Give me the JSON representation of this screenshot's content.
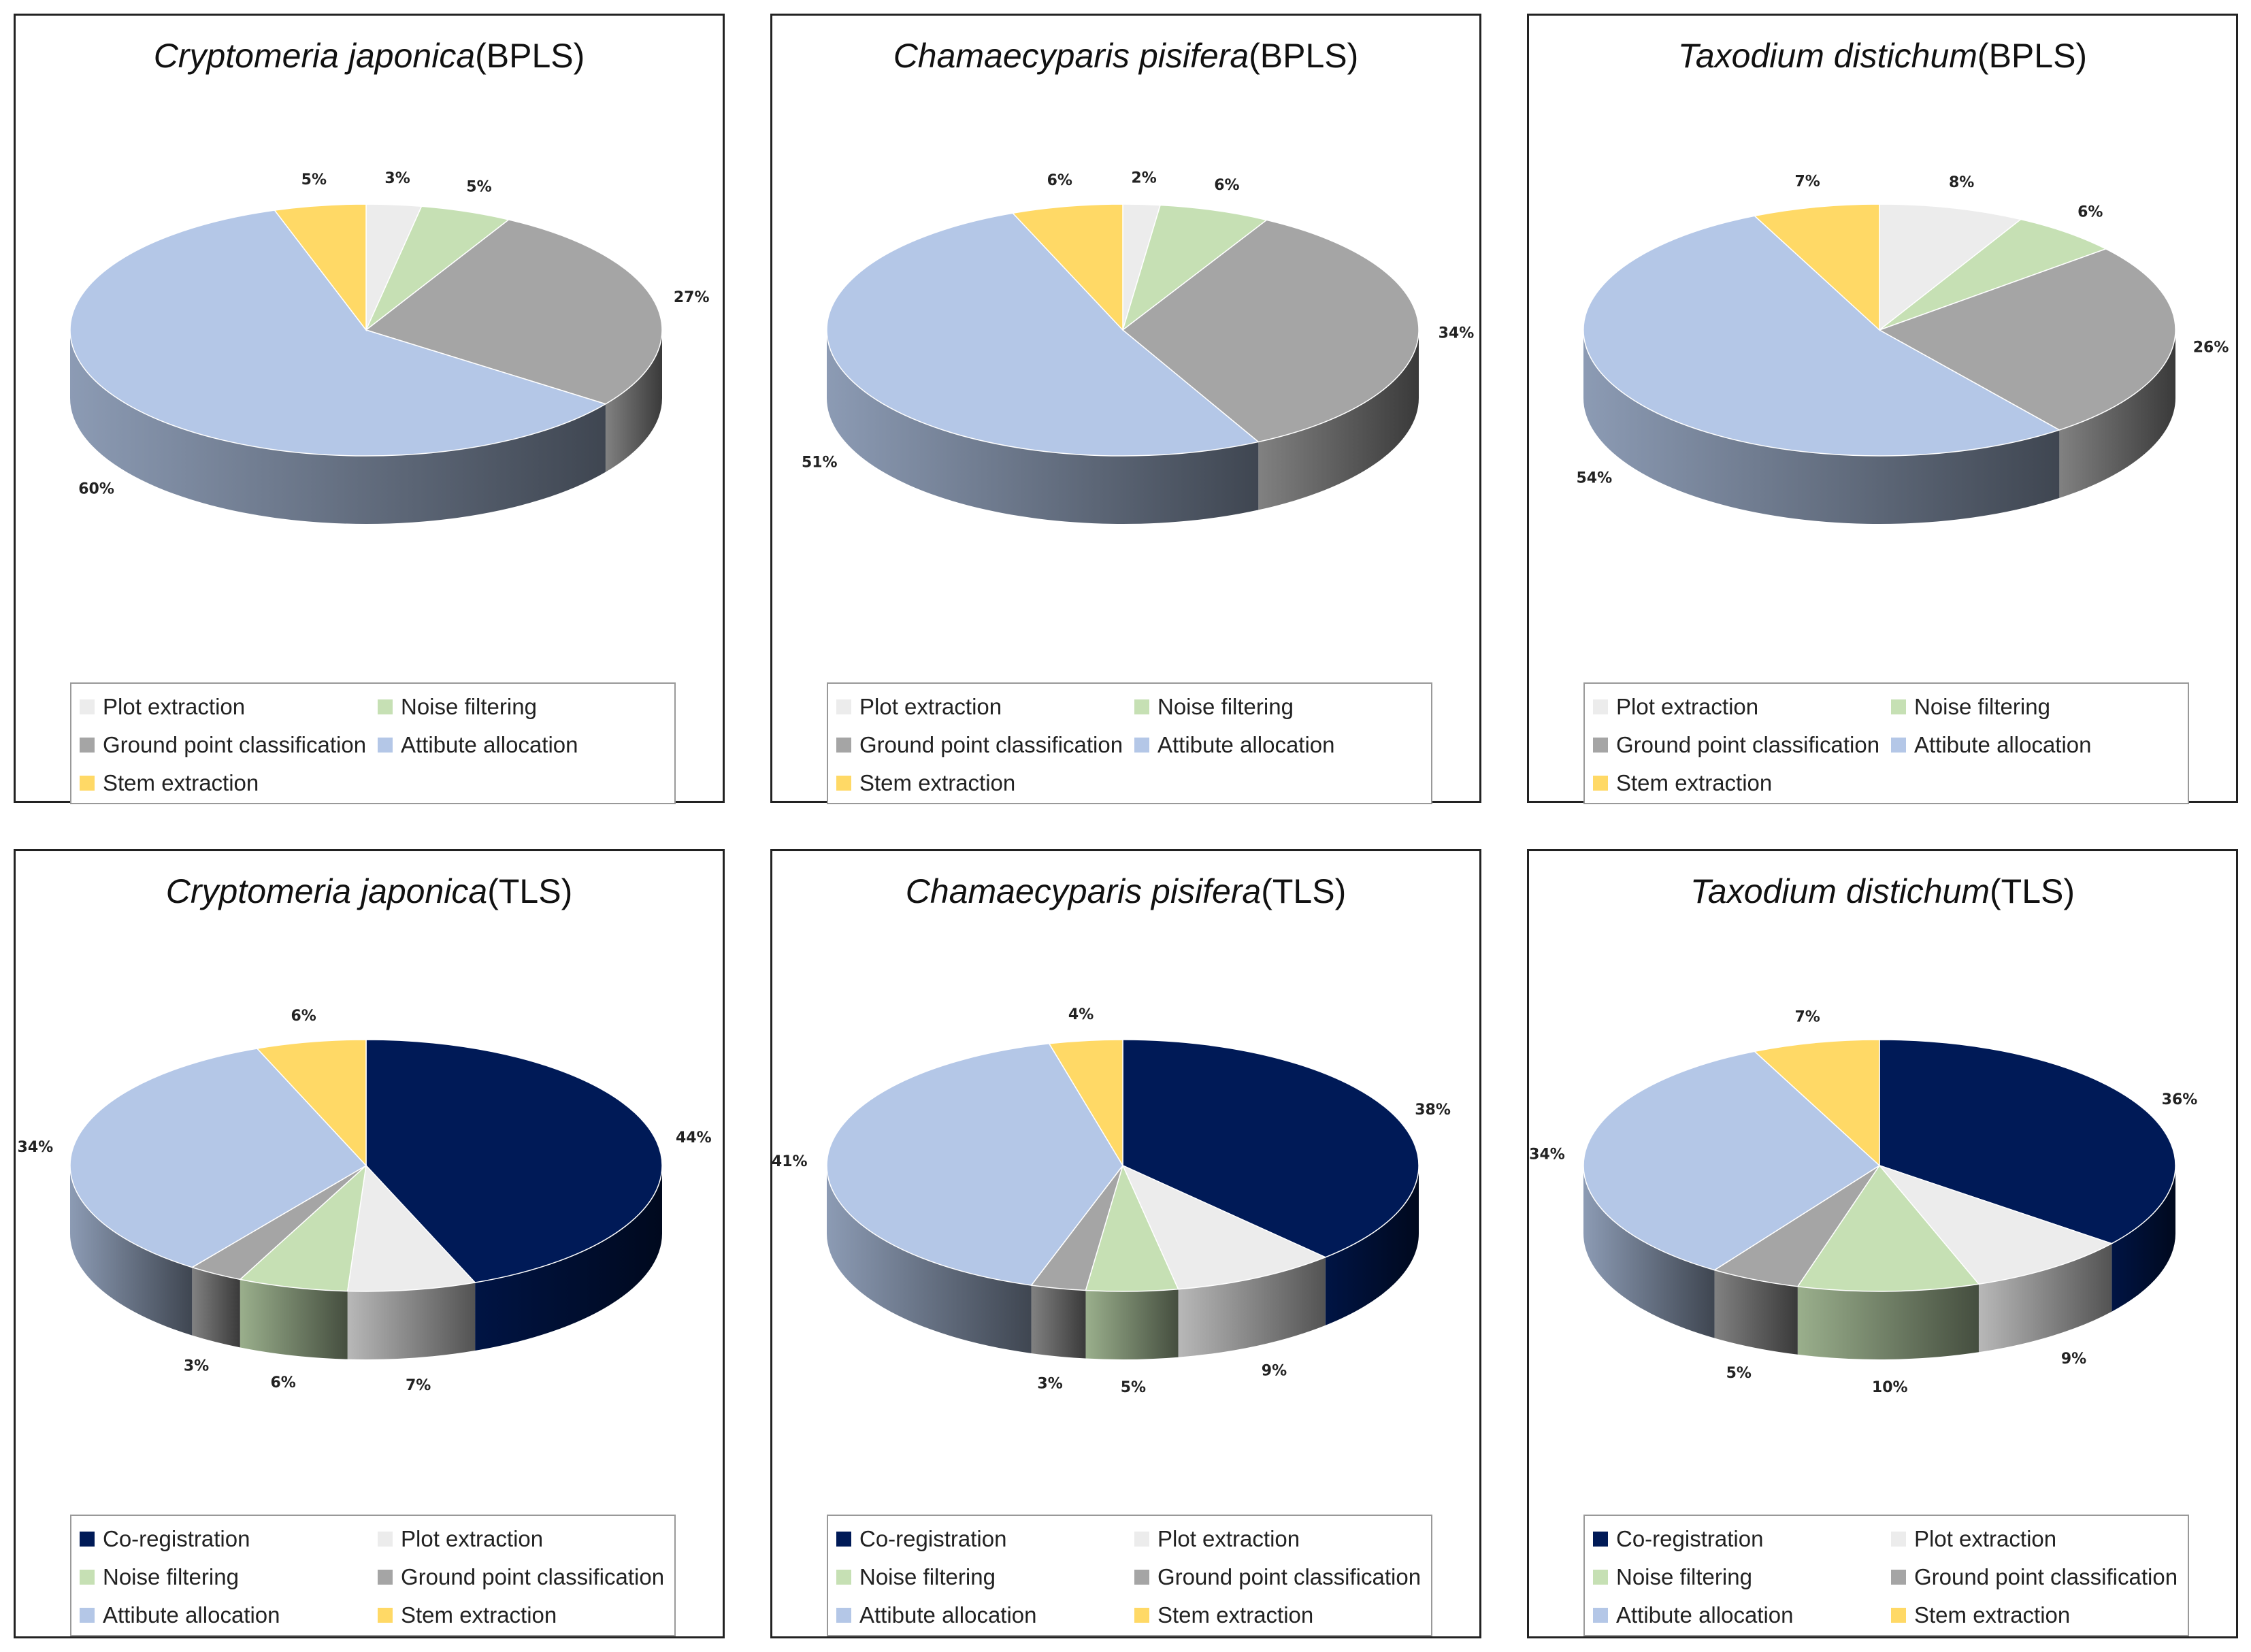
{
  "colors": {
    "Co-registration": "#001a57",
    "Plot extraction": "#ececec",
    "Noise filtering": "#c6e0b4",
    "Ground point classification": "#a5a5a5",
    "Attibute allocation": "#b4c7e7",
    "Stem extraction": "#ffd966"
  },
  "chart_data": [
    {
      "type": "pie",
      "title_species": "Cryptomeria japonica",
      "title_method": "(BPLS)",
      "categories": [
        "Plot extraction",
        "Noise filtering",
        "Ground point classification",
        "Attibute allocation",
        "Stem extraction"
      ],
      "values": [
        3,
        5,
        27,
        60,
        5
      ],
      "labels": [
        "3%",
        "5%",
        "27%",
        "60%",
        "5%"
      ],
      "legend": [
        "Plot extraction",
        "Noise filtering",
        "Ground point classification",
        "Attibute allocation",
        "Stem extraction"
      ]
    },
    {
      "type": "pie",
      "title_species": "Chamaecyparis pisifera",
      "title_method": "(BPLS)",
      "categories": [
        "Plot extraction",
        "Noise filtering",
        "Ground point classification",
        "Attibute allocation",
        "Stem extraction"
      ],
      "values": [
        2,
        6,
        34,
        51,
        6
      ],
      "labels": [
        "2%",
        "6%",
        "34%",
        "51%",
        "6%"
      ],
      "legend": [
        "Plot extraction",
        "Noise filtering",
        "Ground point classification",
        "Attibute allocation",
        "Stem extraction"
      ]
    },
    {
      "type": "pie",
      "title_species": "Taxodium distichum",
      "title_method": "(BPLS)",
      "categories": [
        "Plot extraction",
        "Noise filtering",
        "Ground point classification",
        "Attibute allocation",
        "Stem extraction"
      ],
      "values": [
        8,
        6,
        26,
        54,
        7
      ],
      "labels": [
        "8%",
        "6%",
        "26%",
        "54%",
        "7%"
      ],
      "legend": [
        "Plot extraction",
        "Noise filtering",
        "Ground point classification",
        "Attibute allocation",
        "Stem extraction"
      ]
    },
    {
      "type": "pie",
      "title_species": "Cryptomeria japonica",
      "title_method": "(TLS)",
      "categories": [
        "Co-registration",
        "Plot extraction",
        "Noise filtering",
        "Ground point classification",
        "Attibute allocation",
        "Stem extraction"
      ],
      "values": [
        44,
        7,
        6,
        3,
        34,
        6
      ],
      "labels": [
        "44%",
        "7%",
        "6%",
        "3%",
        "34%",
        "6%"
      ],
      "legend": [
        "Co-registration",
        "Plot extraction",
        "Noise filtering",
        "Ground point classification",
        "Attibute allocation",
        "Stem extraction"
      ]
    },
    {
      "type": "pie",
      "title_species": "Chamaecyparis pisifera",
      "title_method": "(TLS)",
      "categories": [
        "Co-registration",
        "Plot extraction",
        "Noise filtering",
        "Ground point classification",
        "Attibute allocation",
        "Stem extraction"
      ],
      "values": [
        38,
        9,
        5,
        3,
        41,
        4
      ],
      "labels": [
        "38%",
        "9%",
        "5%",
        "3%",
        "41%",
        "4%"
      ],
      "legend": [
        "Co-registration",
        "Plot extraction",
        "Noise filtering",
        "Ground point classification",
        "Attibute allocation",
        "Stem extraction"
      ]
    },
    {
      "type": "pie",
      "title_species": "Taxodium distichum",
      "title_method": "(TLS)",
      "categories": [
        "Co-registration",
        "Plot extraction",
        "Noise filtering",
        "Ground point classification",
        "Attibute allocation",
        "Stem extraction"
      ],
      "values": [
        36,
        9,
        10,
        5,
        34,
        7
      ],
      "labels": [
        "36%",
        "9%",
        "10%",
        "5%",
        "34%",
        "7%"
      ],
      "legend": [
        "Co-registration",
        "Plot extraction",
        "Noise filtering",
        "Ground point classification",
        "Attibute allocation",
        "Stem extraction"
      ]
    }
  ]
}
